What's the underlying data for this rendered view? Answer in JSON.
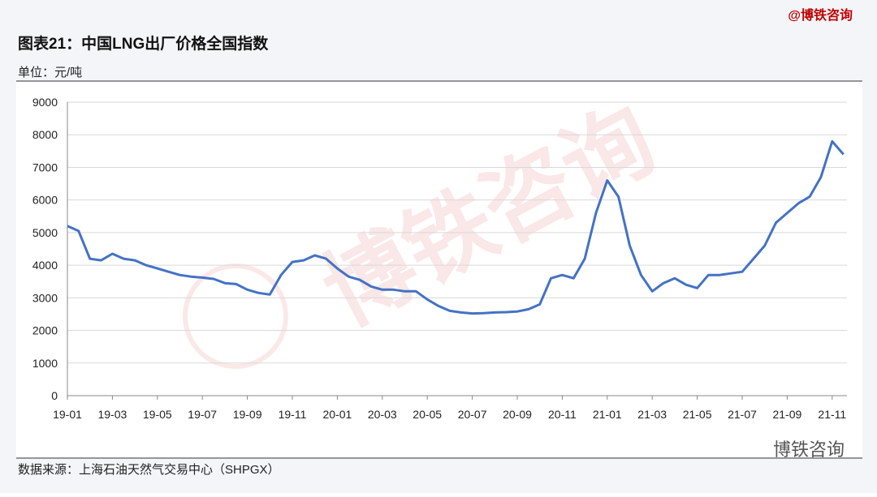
{
  "brand": "@博铁咨询",
  "watermark": "博铁咨询",
  "wechat": "博铁咨询",
  "chart_data": {
    "type": "line",
    "title": "图表21：中国LNG出厂价格全国指数",
    "unit": "单位：元/吨",
    "source": "数据来源：上海石油天然气交易中心（SHPGX）",
    "categories": [
      "19-01",
      null,
      null,
      null,
      "19-03",
      null,
      null,
      null,
      "19-05",
      null,
      null,
      null,
      "19-07",
      null,
      null,
      null,
      "19-09",
      null,
      null,
      null,
      "19-11",
      null,
      null,
      null,
      "20-01",
      null,
      null,
      null,
      "20-03",
      null,
      null,
      null,
      "20-05",
      null,
      null,
      null,
      "20-07",
      null,
      null,
      null,
      "20-09",
      null,
      null,
      null,
      "20-11",
      null,
      null,
      null,
      "21-01",
      null,
      null,
      null,
      "21-03",
      null,
      null,
      null,
      "21-05",
      null,
      null,
      null,
      "21-07",
      null,
      null,
      null,
      "21-09",
      null,
      null,
      null,
      "21-11",
      null
    ],
    "series": [
      {
        "name": "LNG出厂价格全国指数",
        "color": "#4472c4",
        "values": [
          5200,
          5050,
          4200,
          4150,
          4350,
          4200,
          4150,
          4000,
          3900,
          3800,
          3700,
          3650,
          3620,
          3580,
          3450,
          3420,
          3250,
          3150,
          3100,
          3700,
          4100,
          4150,
          4300,
          4200,
          3900,
          3650,
          3550,
          3350,
          3250,
          3250,
          3200,
          3200,
          2950,
          2750,
          2600,
          2550,
          2520,
          2530,
          2550,
          2560,
          2580,
          2650,
          2800,
          3600,
          3700,
          3600,
          4200,
          5600,
          6600,
          6100,
          4600,
          3700,
          3200,
          3450,
          3600,
          3400,
          3300,
          3700,
          3700,
          3750,
          3800,
          4200,
          4600,
          5300,
          5600,
          5900,
          6100,
          6700,
          7800,
          7400
        ]
      }
    ],
    "ylim": [
      0,
      9000
    ],
    "yticks": [
      0,
      1000,
      2000,
      3000,
      4000,
      5000,
      6000,
      7000,
      8000,
      9000
    ],
    "grid": true
  }
}
